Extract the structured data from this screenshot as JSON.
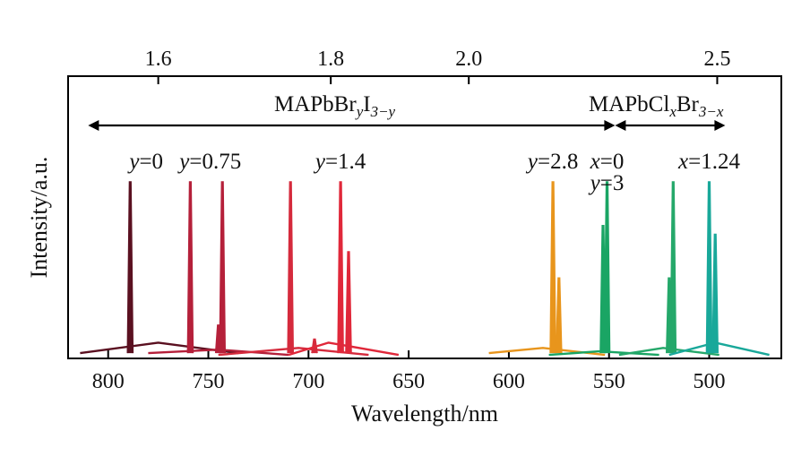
{
  "chart_data": {
    "type": "line",
    "title": "",
    "xlabel": "Wavelength/nm",
    "ylabel": "Intensity/a.u.",
    "x_reversed": true,
    "xlim": [
      820,
      464
    ],
    "x_ticks": [
      800,
      750,
      700,
      650,
      600,
      550,
      500
    ],
    "top_axis": {
      "unit": "eV",
      "ticks": [
        {
          "label": "1.6",
          "value": 1.6
        },
        {
          "label": "1.8",
          "value": 1.8
        },
        {
          "label": "2.0",
          "value": 2.0
        },
        {
          "label": "2.5",
          "value": 2.5
        }
      ]
    },
    "grid": false,
    "series": [
      {
        "color": "#5a1020",
        "peaks": [
          {
            "x": 789,
            "h": 1.0
          }
        ],
        "baseline": [
          [
            814,
            0.02
          ],
          [
            775,
            0.08
          ],
          [
            735,
            0.02
          ]
        ]
      },
      {
        "color": "#b5203a",
        "peaks": [
          {
            "x": 759,
            "h": 1.0
          },
          {
            "x": 745,
            "h": 0.18
          },
          {
            "x": 743,
            "h": 1.0
          }
        ],
        "baseline": [
          [
            780,
            0.02
          ],
          [
            745,
            0.04
          ],
          [
            710,
            0.01
          ]
        ]
      },
      {
        "color": "#d52a3c",
        "peaks": [
          {
            "x": 709,
            "h": 1.0
          },
          {
            "x": 697,
            "h": 0.1
          }
        ],
        "baseline": [
          [
            745,
            0.01
          ],
          [
            705,
            0.05
          ],
          [
            670,
            0.01
          ]
        ]
      },
      {
        "color": "#e0283a",
        "peaks": [
          {
            "x": 684,
            "h": 1.0
          },
          {
            "x": 680,
            "h": 0.6
          }
        ],
        "baseline": [
          [
            710,
            0.01
          ],
          [
            690,
            0.08
          ],
          [
            655,
            0.01
          ]
        ]
      },
      {
        "color": "#e8951c",
        "peaks": [
          {
            "x": 578,
            "h": 1.0
          },
          {
            "x": 575,
            "h": 0.45
          }
        ],
        "baseline": [
          [
            610,
            0.02
          ],
          [
            583,
            0.05
          ],
          [
            552,
            0.01
          ]
        ]
      },
      {
        "color": "#1aa564",
        "peaks": [
          {
            "x": 551,
            "h": 1.0
          },
          {
            "x": 553,
            "h": 0.75
          }
        ],
        "baseline": [
          [
            580,
            0.01
          ],
          [
            555,
            0.03
          ],
          [
            525,
            0.01
          ]
        ]
      },
      {
        "color": "#25a86a",
        "peaks": [
          {
            "x": 518,
            "h": 1.0
          },
          {
            "x": 520,
            "h": 0.45
          }
        ],
        "baseline": [
          [
            545,
            0.01
          ],
          [
            523,
            0.05
          ],
          [
            495,
            0.01
          ]
        ]
      },
      {
        "color": "#19a89a",
        "peaks": [
          {
            "x": 500,
            "h": 1.0
          },
          {
            "x": 497,
            "h": 0.7
          }
        ],
        "baseline": [
          [
            520,
            0.01
          ],
          [
            497,
            0.08
          ],
          [
            470,
            0.01
          ]
        ]
      }
    ],
    "annotations": {
      "range_left": {
        "base": "MAPbBr",
        "sub1": "y",
        "mid": "I",
        "sub2": "3−y",
        "x_start": 810,
        "x_end": 547
      },
      "range_right": {
        "base": "MAPbCl",
        "sub1": "x",
        "mid": "Br",
        "sub2": "3−x",
        "x_start": 547,
        "x_end": 492
      },
      "labels": [
        {
          "var": "y",
          "value": "=0",
          "x": 781
        },
        {
          "var": "y",
          "value": "=0.75",
          "x": 749
        },
        {
          "var": "y",
          "value": "=1.4",
          "x": 684
        },
        {
          "var": "y",
          "value": "=2.8",
          "x": 578
        },
        {
          "var": "x",
          "value": "=0",
          "x": 551
        },
        {
          "var": "y",
          "value": "=3",
          "x": 551
        },
        {
          "var": "x",
          "value": "=1.24",
          "x": 500
        }
      ]
    }
  }
}
